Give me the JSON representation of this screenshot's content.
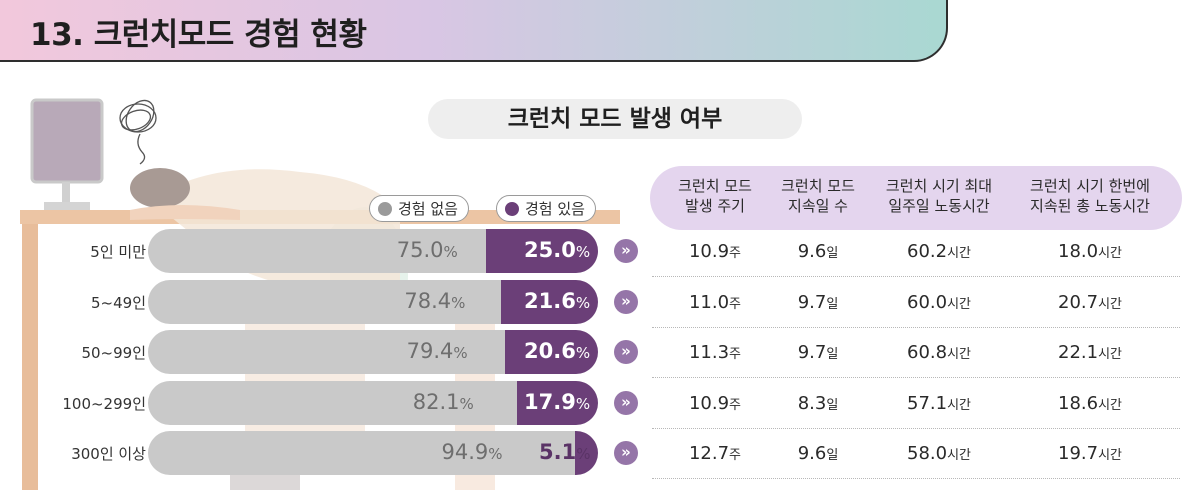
{
  "header": {
    "title": "13. 크런치모드 경험 현황"
  },
  "chart_data": {
    "type": "bar",
    "title": "크런치 모드 발생 여부",
    "stacked": true,
    "orientation": "horizontal",
    "unit": "%",
    "categories": [
      "5인 미만",
      "5~49인",
      "50~99인",
      "100~299인",
      "300인 이상"
    ],
    "series": [
      {
        "name": "경험 없음",
        "color": "#c9c9c9",
        "values": [
          75.0,
          78.4,
          79.4,
          82.1,
          94.9
        ]
      },
      {
        "name": "경험 있음",
        "color": "#6b3f78",
        "values": [
          25.0,
          21.6,
          20.6,
          17.9,
          5.1
        ]
      }
    ],
    "value_labels": {
      "none": [
        "75.0",
        "78.4",
        "79.4",
        "82.1",
        "94.9"
      ],
      "yes": [
        "25.0",
        "21.6",
        "20.6",
        "17.9",
        "5.1"
      ]
    },
    "legend": [
      "경험 없음",
      "경험 있음"
    ],
    "legend_position": "top-right"
  },
  "table": {
    "headers": [
      [
        "크런치 모드",
        "발생 주기"
      ],
      [
        "크런치 모드",
        "지속일 수"
      ],
      [
        "크런치 시기 최대",
        "일주일 노동시간"
      ],
      [
        "크런치 시기 한번에",
        "지속된 총 노동시간"
      ]
    ],
    "rows": [
      [
        {
          "v": "10.9",
          "u": "주"
        },
        {
          "v": "9.6",
          "u": "일"
        },
        {
          "v": "60.2",
          "u": "시간"
        },
        {
          "v": "18.0",
          "u": "시간"
        }
      ],
      [
        {
          "v": "11.0",
          "u": "주"
        },
        {
          "v": "9.7",
          "u": "일"
        },
        {
          "v": "60.0",
          "u": "시간"
        },
        {
          "v": "20.7",
          "u": "시간"
        }
      ],
      [
        {
          "v": "11.3",
          "u": "주"
        },
        {
          "v": "9.7",
          "u": "일"
        },
        {
          "v": "60.8",
          "u": "시간"
        },
        {
          "v": "22.1",
          "u": "시간"
        }
      ],
      [
        {
          "v": "10.9",
          "u": "주"
        },
        {
          "v": "8.3",
          "u": "일"
        },
        {
          "v": "57.1",
          "u": "시간"
        },
        {
          "v": "18.6",
          "u": "시간"
        }
      ],
      [
        {
          "v": "12.7",
          "u": "주"
        },
        {
          "v": "9.6",
          "u": "일"
        },
        {
          "v": "58.0",
          "u": "시간"
        },
        {
          "v": "19.7",
          "u": "시간"
        }
      ]
    ]
  },
  "pct_symbol": "%",
  "arrow_glyph": "»",
  "colors": {
    "accent": "#6b3f78",
    "gray": "#c9c9c9",
    "header_fill": "#e4d5ee",
    "arrow": "#9575a8"
  },
  "icons": [
    "desk-illustration",
    "tired-worker-illustration",
    "tangled-thought-icon",
    "arrow-right-icon"
  ]
}
